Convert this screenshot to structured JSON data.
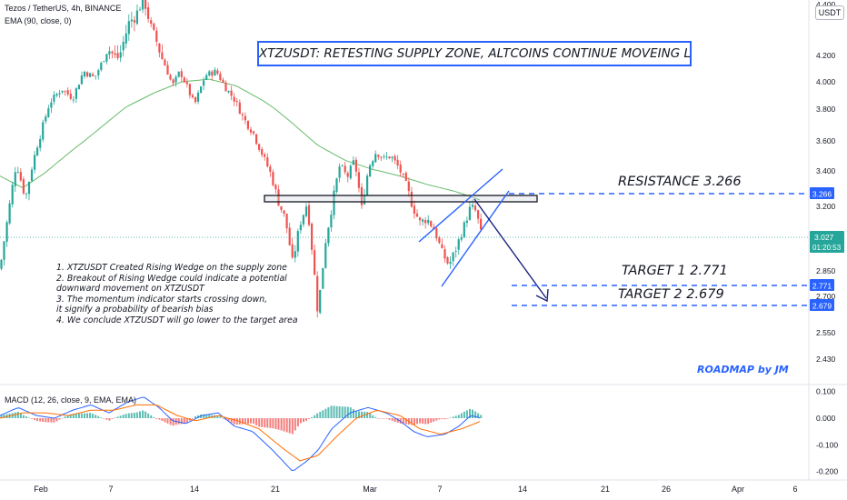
{
  "header": {
    "symbol_line": "Tezos / TetherUS, 4h, BINANCE",
    "ema_line": "EMA (90, close, 0)",
    "currency_badge": "USDT"
  },
  "annotations": {
    "headline": "XTZUSDT: RETESTING SUPPLY ZONE, ALTCOINS CONTINUE MOVEING LOWER?",
    "notes": [
      "1. XTZUSDT Created Rising Wedge on  the supply zone",
      "2. Breakout of Rising Wedge could indicate a potential",
      "downward movement on XTZUSDT",
      "3. The momentum indicator starts crossing down,",
      "it signify a probability of bearish bias",
      "4. We conclude XTZUSDT will go lower to the target area"
    ],
    "resistance_label": "RESISTANCE 3.266",
    "target1_label": "TARGET 1  2.771",
    "target2_label": "TARGET 2  2.679",
    "credit": "ROADMAP by JM"
  },
  "macd_panel": {
    "label": "MACD (12, 26, close, 9, EMA, EMA)"
  },
  "colors": {
    "up_candle": "#26a69a",
    "down_candle": "#ef5350",
    "ema_line": "#4caf50",
    "annotation_blue": "#2962ff",
    "wedge_line": "#2962ff",
    "macd_line": "#2962ff",
    "signal_line": "#ff6d00",
    "dark_navy": "#1a237e",
    "current_price_badge": "#26a69a",
    "level_badge": "#2962ff"
  },
  "chart_data": {
    "type": "candlestick",
    "title": "Tezos / TetherUS, 4h, BINANCE",
    "x_tick_labels": [
      "Feb",
      "7",
      "14",
      "21",
      "Mar",
      "7",
      "14",
      "21",
      "26",
      "Apr",
      "6"
    ],
    "price_axis": {
      "ticks": [
        "4.400",
        "4.200",
        "4.000",
        "3.800",
        "3.600",
        "3.400",
        "3.200",
        "2.850",
        "2.700",
        "2.550",
        "2.430"
      ],
      "tick_values": [
        4.4,
        4.2,
        4.0,
        3.8,
        3.6,
        3.4,
        3.2,
        2.85,
        2.7,
        2.55,
        2.43
      ],
      "range": [
        2.4,
        4.45
      ]
    },
    "current_price": 3.027,
    "current_price_label": "3.027",
    "countdown_label": "01:20:53",
    "levels": [
      {
        "name": "RESISTANCE",
        "value": 3.266,
        "label": "3.266"
      },
      {
        "name": "TARGET 1",
        "value": 2.771,
        "label": "2.771"
      },
      {
        "name": "TARGET 2",
        "value": 2.679,
        "label": "2.679"
      }
    ],
    "supply_zone": [
      3.21,
      3.256
    ],
    "price_anchors": [
      {
        "x": 0,
        "v": 2.86
      },
      {
        "x": 8,
        "v": 3.12
      },
      {
        "x": 18,
        "v": 3.45
      },
      {
        "x": 28,
        "v": 3.24
      },
      {
        "x": 40,
        "v": 3.55
      },
      {
        "x": 55,
        "v": 3.85
      },
      {
        "x": 68,
        "v": 3.95
      },
      {
        "x": 80,
        "v": 3.88
      },
      {
        "x": 92,
        "v": 4.08
      },
      {
        "x": 104,
        "v": 4.03
      },
      {
        "x": 118,
        "v": 4.23
      },
      {
        "x": 130,
        "v": 4.18
      },
      {
        "x": 142,
        "v": 4.33
      },
      {
        "x": 150,
        "v": 4.36
      },
      {
        "x": 158,
        "v": 4.43
      },
      {
        "x": 166,
        "v": 4.31
      },
      {
        "x": 174,
        "v": 4.24
      },
      {
        "x": 182,
        "v": 4.12
      },
      {
        "x": 190,
        "v": 3.97
      },
      {
        "x": 198,
        "v": 4.08
      },
      {
        "x": 206,
        "v": 3.96
      },
      {
        "x": 214,
        "v": 3.83
      },
      {
        "x": 226,
        "v": 4.05
      },
      {
        "x": 238,
        "v": 4.08
      },
      {
        "x": 248,
        "v": 3.96
      },
      {
        "x": 258,
        "v": 3.87
      },
      {
        "x": 268,
        "v": 3.74
      },
      {
        "x": 278,
        "v": 3.66
      },
      {
        "x": 288,
        "v": 3.52
      },
      {
        "x": 298,
        "v": 3.38
      },
      {
        "x": 306,
        "v": 3.23
      },
      {
        "x": 314,
        "v": 3.13
      },
      {
        "x": 322,
        "v": 2.89
      },
      {
        "x": 330,
        "v": 3.1
      },
      {
        "x": 338,
        "v": 3.22
      },
      {
        "x": 344,
        "v": 2.93
      },
      {
        "x": 350,
        "v": 2.63
      },
      {
        "x": 358,
        "v": 3.0
      },
      {
        "x": 366,
        "v": 3.22
      },
      {
        "x": 374,
        "v": 3.44
      },
      {
        "x": 382,
        "v": 3.36
      },
      {
        "x": 390,
        "v": 3.47
      },
      {
        "x": 398,
        "v": 3.19
      },
      {
        "x": 406,
        "v": 3.43
      },
      {
        "x": 414,
        "v": 3.53
      },
      {
        "x": 422,
        "v": 3.48
      },
      {
        "x": 430,
        "v": 3.5
      },
      {
        "x": 438,
        "v": 3.43
      },
      {
        "x": 446,
        "v": 3.33
      },
      {
        "x": 454,
        "v": 3.2
      },
      {
        "x": 462,
        "v": 3.11
      },
      {
        "x": 470,
        "v": 3.13
      },
      {
        "x": 478,
        "v": 3.07
      },
      {
        "x": 486,
        "v": 2.95
      },
      {
        "x": 494,
        "v": 2.88
      },
      {
        "x": 502,
        "v": 2.97
      },
      {
        "x": 510,
        "v": 3.08
      },
      {
        "x": 518,
        "v": 3.2
      },
      {
        "x": 524,
        "v": 3.17
      },
      {
        "x": 530,
        "v": 3.03
      }
    ],
    "ema_anchors": [
      {
        "x": 0,
        "v": 3.37
      },
      {
        "x": 25,
        "v": 3.3
      },
      {
        "x": 50,
        "v": 3.39
      },
      {
        "x": 80,
        "v": 3.54
      },
      {
        "x": 110,
        "v": 3.68
      },
      {
        "x": 140,
        "v": 3.82
      },
      {
        "x": 170,
        "v": 3.92
      },
      {
        "x": 200,
        "v": 4.0
      },
      {
        "x": 230,
        "v": 4.02
      },
      {
        "x": 260,
        "v": 3.97
      },
      {
        "x": 290,
        "v": 3.86
      },
      {
        "x": 320,
        "v": 3.72
      },
      {
        "x": 350,
        "v": 3.57
      },
      {
        "x": 380,
        "v": 3.47
      },
      {
        "x": 410,
        "v": 3.41
      },
      {
        "x": 440,
        "v": 3.37
      },
      {
        "x": 470,
        "v": 3.32
      },
      {
        "x": 500,
        "v": 3.28
      },
      {
        "x": 530,
        "v": 3.23
      }
    ],
    "macd_axis": {
      "ticks": [
        "0.100",
        "0.000",
        "-0.100",
        "-0.200"
      ],
      "tick_values": [
        0.1,
        0.0,
        -0.1,
        -0.2
      ]
    },
    "macd_anchors": [
      {
        "x": 0,
        "v": 0.01
      },
      {
        "x": 20,
        "v": 0.04
      },
      {
        "x": 40,
        "v": 0.01
      },
      {
        "x": 60,
        "v": 0.0
      },
      {
        "x": 80,
        "v": 0.03
      },
      {
        "x": 100,
        "v": 0.05
      },
      {
        "x": 120,
        "v": 0.02
      },
      {
        "x": 140,
        "v": 0.06
      },
      {
        "x": 158,
        "v": 0.08
      },
      {
        "x": 175,
        "v": 0.04
      },
      {
        "x": 190,
        "v": -0.01
      },
      {
        "x": 205,
        "v": -0.02
      },
      {
        "x": 222,
        "v": 0.01
      },
      {
        "x": 240,
        "v": 0.02
      },
      {
        "x": 258,
        "v": -0.03
      },
      {
        "x": 278,
        "v": -0.05
      },
      {
        "x": 300,
        "v": -0.12
      },
      {
        "x": 322,
        "v": -0.2
      },
      {
        "x": 338,
        "v": -0.16
      },
      {
        "x": 350,
        "v": -0.12
      },
      {
        "x": 365,
        "v": -0.04
      },
      {
        "x": 385,
        "v": 0.02
      },
      {
        "x": 405,
        "v": 0.04
      },
      {
        "x": 425,
        "v": 0.02
      },
      {
        "x": 440,
        "v": -0.01
      },
      {
        "x": 455,
        "v": -0.05
      },
      {
        "x": 470,
        "v": -0.07
      },
      {
        "x": 490,
        "v": -0.06
      },
      {
        "x": 505,
        "v": -0.03
      },
      {
        "x": 518,
        "v": 0.01
      },
      {
        "x": 530,
        "v": 0.0
      }
    ],
    "signal_anchors": [
      {
        "x": 0,
        "v": 0.0
      },
      {
        "x": 25,
        "v": 0.02
      },
      {
        "x": 50,
        "v": 0.02
      },
      {
        "x": 75,
        "v": 0.01
      },
      {
        "x": 100,
        "v": 0.03
      },
      {
        "x": 125,
        "v": 0.03
      },
      {
        "x": 150,
        "v": 0.05
      },
      {
        "x": 172,
        "v": 0.05
      },
      {
        "x": 195,
        "v": 0.01
      },
      {
        "x": 215,
        "v": -0.01
      },
      {
        "x": 240,
        "v": 0.01
      },
      {
        "x": 262,
        "v": -0.01
      },
      {
        "x": 285,
        "v": -0.04
      },
      {
        "x": 310,
        "v": -0.11
      },
      {
        "x": 330,
        "v": -0.16
      },
      {
        "x": 350,
        "v": -0.14
      },
      {
        "x": 370,
        "v": -0.07
      },
      {
        "x": 392,
        "v": 0.0
      },
      {
        "x": 415,
        "v": 0.03
      },
      {
        "x": 440,
        "v": 0.01
      },
      {
        "x": 462,
        "v": -0.04
      },
      {
        "x": 485,
        "v": -0.06
      },
      {
        "x": 508,
        "v": -0.04
      },
      {
        "x": 530,
        "v": -0.01
      }
    ]
  }
}
